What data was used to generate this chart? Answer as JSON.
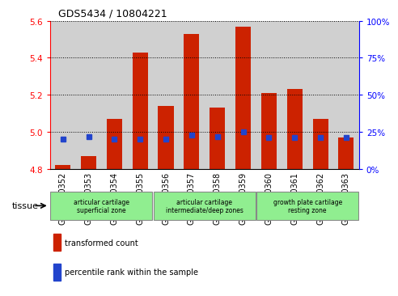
{
  "title": "GDS5434 / 10804221",
  "samples": [
    "GSM1310352",
    "GSM1310353",
    "GSM1310354",
    "GSM1310355",
    "GSM1310356",
    "GSM1310357",
    "GSM1310358",
    "GSM1310359",
    "GSM1310360",
    "GSM1310361",
    "GSM1310362",
    "GSM1310363"
  ],
  "red_values": [
    4.82,
    4.87,
    5.07,
    5.43,
    5.14,
    5.53,
    5.13,
    5.57,
    5.21,
    5.23,
    5.07,
    4.97
  ],
  "blue_percentiles": [
    20,
    22,
    20,
    20,
    20,
    23,
    22,
    25,
    21,
    21,
    21,
    21
  ],
  "ymin": 4.8,
  "ymax": 5.6,
  "y2min": 0,
  "y2max": 100,
  "yticks": [
    4.8,
    5.0,
    5.2,
    5.4,
    5.6
  ],
  "y2ticks": [
    0,
    25,
    50,
    75,
    100
  ],
  "bar_color": "#cc2200",
  "blue_color": "#2244cc",
  "col_bg_color": "#d0d0d0",
  "plot_bg_color": "#ffffff",
  "groups": [
    {
      "start": 0,
      "end": 3,
      "label": "articular cartilage\nsuperficial zone"
    },
    {
      "start": 4,
      "end": 7,
      "label": "articular cartilage\nintermediate/deep zones"
    },
    {
      "start": 8,
      "end": 11,
      "label": "growth plate cartilage\nresting zone"
    }
  ],
  "green_color": "#90ee90",
  "tissue_label": "tissue",
  "legend_red": "transformed count",
  "legend_blue": "percentile rank within the sample",
  "title_fontsize": 9,
  "tick_fontsize": 7.5,
  "label_fontsize": 7,
  "bar_width": 0.6
}
